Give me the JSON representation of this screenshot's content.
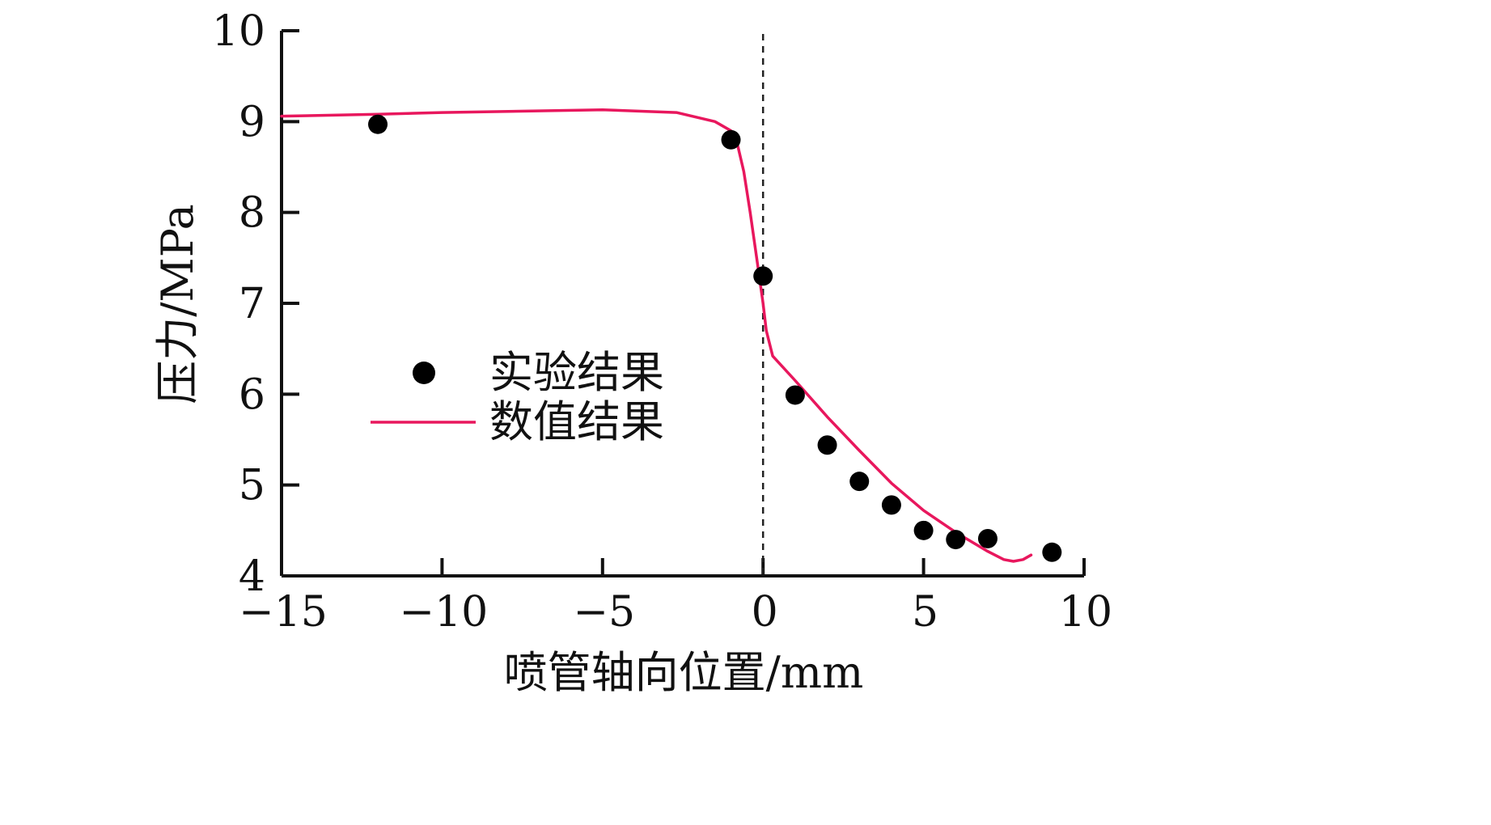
{
  "chart_data": {
    "type": "scatter",
    "xlabel": "喷管轴向位置/mm",
    "ylabel": "压力/MPa",
    "xlim": [
      -15,
      10
    ],
    "ylim": [
      4,
      10
    ],
    "x_ticks": [
      -15,
      -10,
      -5,
      0,
      5,
      10
    ],
    "x_tick_labels": [
      "−15",
      "−10",
      "−5",
      "0",
      "5",
      "10"
    ],
    "y_ticks": [
      4,
      5,
      6,
      7,
      8,
      9,
      10
    ],
    "y_tick_labels": [
      "4",
      "5",
      "6",
      "7",
      "8",
      "9",
      "10"
    ],
    "grid": false,
    "legend_position": "center-left",
    "reference_line": {
      "x": 0,
      "style": "dashed"
    },
    "colors": {
      "axis": "#111111",
      "experimental": "#000000",
      "numerical": "#e8175d"
    },
    "series": [
      {
        "name": "实验结果",
        "kind": "scatter",
        "marker": "filled-circle",
        "x": [
          -12,
          -1,
          0,
          1,
          2,
          3,
          4,
          5,
          6,
          7,
          9
        ],
        "y": [
          8.97,
          8.8,
          7.3,
          5.99,
          5.44,
          5.04,
          4.78,
          4.5,
          4.4,
          4.41,
          4.26
        ]
      },
      {
        "name": "数值结果",
        "kind": "line",
        "x": [
          -15,
          -12,
          -10,
          -5,
          -2.7,
          -1.5,
          -1.0,
          -0.8,
          -0.6,
          -0.4,
          -0.2,
          0,
          0.1,
          0.3,
          1,
          2,
          3,
          4,
          5,
          6,
          7,
          7.5,
          7.8,
          8.1,
          8.35
        ],
        "y": [
          9.06,
          9.08,
          9.1,
          9.13,
          9.1,
          9.0,
          8.9,
          8.75,
          8.45,
          8.0,
          7.5,
          7.0,
          6.7,
          6.42,
          6.15,
          5.75,
          5.38,
          5.02,
          4.72,
          4.48,
          4.27,
          4.18,
          4.16,
          4.18,
          4.23
        ]
      }
    ]
  }
}
